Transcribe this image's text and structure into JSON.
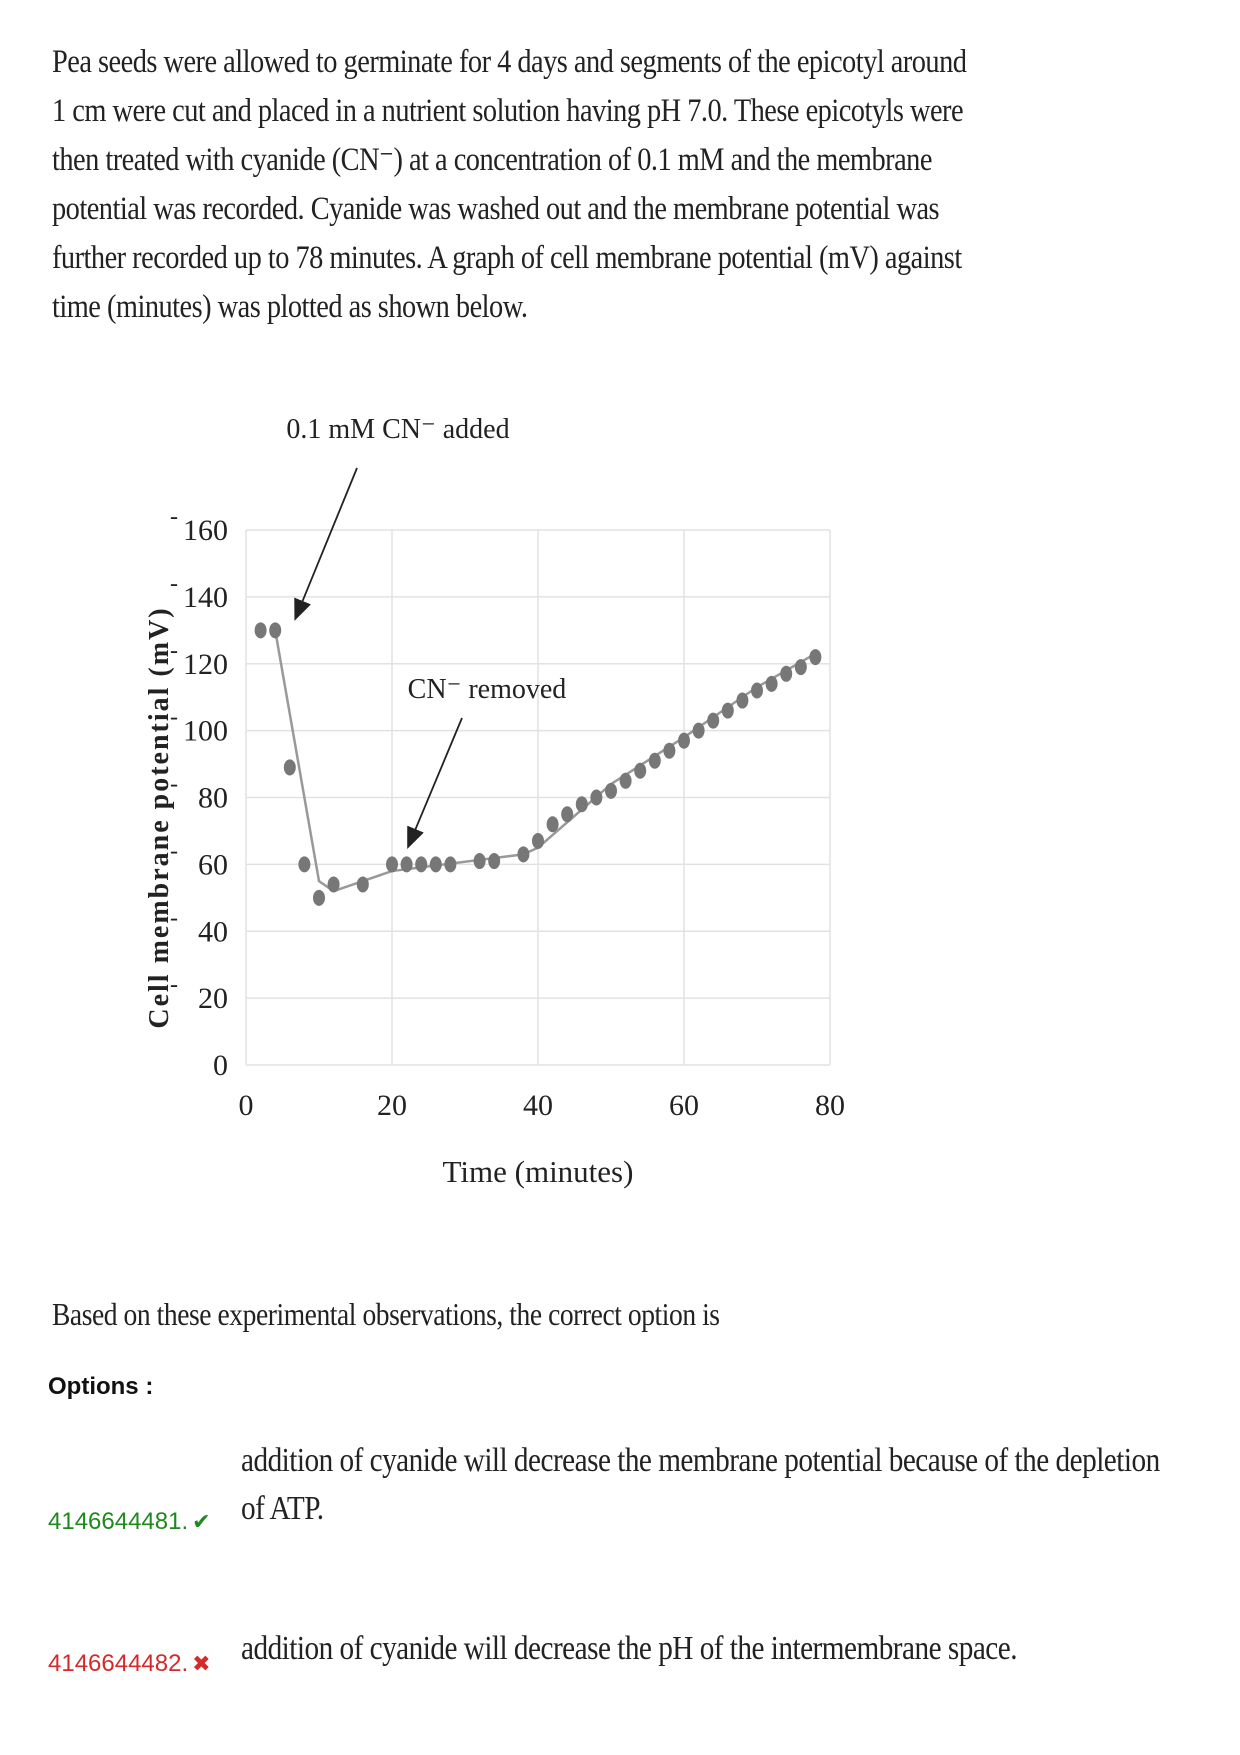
{
  "question": {
    "intro_lines": [
      "Pea seeds were allowed to germinate for 4 days and segments of the epicotyl around",
      "1 cm were cut and placed in a nutrient solution having pH 7.0. These epicotyls were",
      "then treated with cyanide (CN⁻) at a concentration of 0.1 mM and the membrane",
      "potential was recorded. Cyanide was washed out and the membrane potential was",
      "further recorded up to 78 minutes. A graph of cell membrane potential (mV) against",
      "time (minutes) was plotted as shown below."
    ],
    "prompt": "Based on these experimental observations, the correct option is"
  },
  "chart_data": {
    "type": "scatter",
    "xlabel": "Time (minutes)",
    "ylabel": "Cell membrane potential (mV)",
    "xlim": [
      0,
      80
    ],
    "ylim": [
      0,
      160
    ],
    "x_ticks": [
      "0",
      "20",
      "40",
      "60",
      "80"
    ],
    "y_ticks": [
      "0",
      "20",
      "40",
      "60",
      "80",
      "100",
      "120",
      "140",
      "160"
    ],
    "y_tick_prefix": "-",
    "grid": true,
    "points": [
      [
        2,
        130
      ],
      [
        4,
        130
      ],
      [
        6,
        89
      ],
      [
        8,
        60
      ],
      [
        10,
        50
      ],
      [
        12,
        54
      ],
      [
        16,
        54
      ],
      [
        20,
        60
      ],
      [
        22,
        60
      ],
      [
        24,
        60
      ],
      [
        26,
        60
      ],
      [
        28,
        60
      ],
      [
        32,
        61
      ],
      [
        34,
        61
      ],
      [
        38,
        63
      ],
      [
        40,
        67
      ],
      [
        42,
        72
      ],
      [
        44,
        75
      ],
      [
        46,
        78
      ],
      [
        48,
        80
      ],
      [
        50,
        82
      ],
      [
        52,
        85
      ],
      [
        54,
        88
      ],
      [
        56,
        91
      ],
      [
        58,
        94
      ],
      [
        60,
        97
      ],
      [
        62,
        100
      ],
      [
        64,
        103
      ],
      [
        66,
        106
      ],
      [
        68,
        109
      ],
      [
        70,
        112
      ],
      [
        72,
        114
      ],
      [
        74,
        117
      ],
      [
        76,
        119
      ],
      [
        78,
        122
      ]
    ],
    "fit_line": [
      [
        4,
        130
      ],
      [
        10,
        55
      ],
      [
        12,
        52
      ],
      [
        20,
        58
      ],
      [
        38,
        63
      ],
      [
        40,
        65
      ],
      [
        50,
        84
      ],
      [
        60,
        98
      ],
      [
        70,
        113
      ],
      [
        78,
        123
      ]
    ],
    "annotations": [
      {
        "text": "0.1 mM CN⁻ added",
        "x": 6,
        "y": 135
      },
      {
        "text": "CN⁻ removed",
        "x": 22,
        "y": 62
      }
    ],
    "colors": {
      "marker": "#777777",
      "line": "#999999",
      "grid": "#e2e2e2"
    }
  },
  "options_label": "Options :",
  "options": [
    {
      "id": "4146644481.",
      "status": "correct",
      "mark": "✔",
      "text_lines": [
        "addition of cyanide will decrease the membrane potential because of the depletion",
        "of ATP."
      ]
    },
    {
      "id": "4146644482.",
      "status": "wrong",
      "mark": "✖",
      "text_lines": [
        "addition of cyanide will decrease the pH of the intermembrane space."
      ]
    }
  ]
}
